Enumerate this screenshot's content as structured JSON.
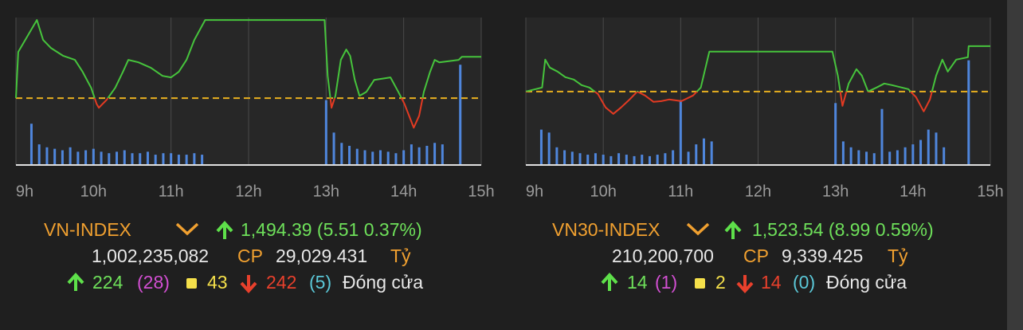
{
  "chart_data": [
    {
      "type": "line",
      "title": "VN-INDEX",
      "quote": "1,494.39 (5.51 0.37%)",
      "volume": "1,002,235,082",
      "volume_unit": "CP",
      "turnover": "29,029.431",
      "turnover_unit": "Tỷ",
      "advances": 224,
      "ceilings": "(28)",
      "unchanged": 43,
      "declines": 242,
      "floors": "(5)",
      "status": "Đóng cửa",
      "x": [
        9.0,
        9.03,
        9.27,
        9.35,
        9.45,
        9.61,
        9.76,
        9.86,
        9.97,
        10.04,
        10.07,
        10.17,
        10.28,
        10.38,
        10.45,
        10.58,
        10.74,
        10.89,
        11.0,
        11.1,
        11.2,
        11.3,
        11.44,
        12.98,
        13.02,
        13.07,
        13.12,
        13.19,
        13.26,
        13.31,
        13.37,
        13.43,
        13.52,
        13.62,
        13.83,
        13.93,
        14.01,
        14.13,
        14.2,
        14.26,
        14.34,
        14.4,
        14.46,
        14.71,
        14.75,
        15.0
      ],
      "values": [
        1488.88,
        1495.03,
        1499.27,
        1496.62,
        1495.56,
        1494.5,
        1493.97,
        1492.38,
        1490.26,
        1488.14,
        1487.61,
        1488.67,
        1490.26,
        1492.38,
        1493.97,
        1493.65,
        1492.91,
        1491.85,
        1491.64,
        1492.38,
        1493.97,
        1496.62,
        1499.27,
        1499.27,
        1491.85,
        1487.61,
        1489.2,
        1493.97,
        1495.35,
        1494.5,
        1491.32,
        1489.2,
        1489.73,
        1491.32,
        1491.64,
        1489.73,
        1488.14,
        1484.96,
        1486.55,
        1489.73,
        1492.38,
        1493.97,
        1493.65,
        1493.97,
        1494.39,
        1494.39
      ],
      "color": "#46c43c",
      "down_color": "#e33a22",
      "reference": 1488.88,
      "reference_color": "#e8b020",
      "ylim": [
        1480,
        1499.6
      ],
      "xlim": [
        9,
        15
      ],
      "xticks": [
        {
          "value": 9,
          "label": "9h"
        },
        {
          "value": 10,
          "label": "10h"
        },
        {
          "value": 11,
          "label": "11h"
        },
        {
          "value": 12,
          "label": "12h"
        },
        {
          "value": 13,
          "label": "13h"
        },
        {
          "value": 14,
          "label": "14h"
        },
        {
          "value": 15,
          "label": "15h"
        }
      ],
      "bars_x": [
        9.2,
        9.3,
        9.4,
        9.5,
        9.6,
        9.7,
        9.8,
        9.9,
        10.0,
        10.1,
        10.2,
        10.3,
        10.4,
        10.5,
        10.6,
        10.7,
        10.8,
        10.9,
        11.0,
        11.1,
        11.2,
        11.3,
        11.4,
        13.0,
        13.1,
        13.2,
        13.3,
        13.4,
        13.5,
        13.6,
        13.7,
        13.8,
        13.9,
        14.0,
        14.1,
        14.2,
        14.3,
        14.4,
        14.5,
        14.73
      ],
      "bars": [
        28,
        14,
        12,
        11,
        10,
        12,
        9,
        10,
        11,
        9,
        8,
        9,
        10,
        8,
        8,
        9,
        7,
        8,
        8,
        7,
        7,
        8,
        7,
        44,
        22,
        15,
        13,
        11,
        10,
        9,
        10,
        9,
        8,
        10,
        14,
        12,
        13,
        15,
        14,
        68
      ],
      "bar_color": "#4f86dc",
      "y2lim": [
        0,
        100
      ]
    },
    {
      "type": "line",
      "title": "VN30-INDEX",
      "quote": "1,523.54 (8.99 0.59%)",
      "volume": "210,200,700",
      "volume_unit": "CP",
      "turnover": "9,339.425",
      "turnover_unit": "Tỷ",
      "advances": 14,
      "ceilings": "(1)",
      "unchanged": 2,
      "declines": 14,
      "floors": "(0)",
      "status": "Đóng cửa",
      "x": [
        9.0,
        9.21,
        9.25,
        9.31,
        9.41,
        9.51,
        9.62,
        9.72,
        9.82,
        9.93,
        10.03,
        10.13,
        10.23,
        10.34,
        10.44,
        10.54,
        10.65,
        10.75,
        10.85,
        11.01,
        11.16,
        11.26,
        11.37,
        12.96,
        13.03,
        13.09,
        13.17,
        13.27,
        13.34,
        13.42,
        13.53,
        13.63,
        13.73,
        13.94,
        14.04,
        14.14,
        14.22,
        14.3,
        14.38,
        14.45,
        14.56,
        14.71,
        14.72,
        15.0
      ],
      "values": [
        1514.55,
        1515.34,
        1520.87,
        1519.29,
        1518.5,
        1517.39,
        1516.92,
        1515.81,
        1515.34,
        1514.08,
        1511.39,
        1510.13,
        1511.39,
        1512.97,
        1514.55,
        1513.76,
        1512.5,
        1512.65,
        1512.97,
        1512.65,
        1513.76,
        1515.34,
        1522.45,
        1522.45,
        1517.71,
        1511.71,
        1516.13,
        1518.97,
        1517.71,
        1514.55,
        1515.34,
        1516.13,
        1515.81,
        1515.02,
        1513.44,
        1510.6,
        1512.97,
        1517.71,
        1520.87,
        1518.5,
        1520.87,
        1521.34,
        1523.54,
        1523.54
      ],
      "color": "#46c43c",
      "down_color": "#e33a22",
      "reference": 1514.55,
      "reference_color": "#e8b020",
      "ylim": [
        1500,
        1529.2
      ],
      "xlim": [
        9,
        15
      ],
      "xticks": [
        {
          "value": 9,
          "label": "9h"
        },
        {
          "value": 10,
          "label": "10h"
        },
        {
          "value": 11,
          "label": "11h"
        },
        {
          "value": 12,
          "label": "12h"
        },
        {
          "value": 13,
          "label": "13h"
        },
        {
          "value": 14,
          "label": "14h"
        },
        {
          "value": 15,
          "label": "15h"
        }
      ],
      "bars_x": [
        9.2,
        9.3,
        9.4,
        9.5,
        9.6,
        9.7,
        9.8,
        9.9,
        10.0,
        10.1,
        10.2,
        10.3,
        10.4,
        10.5,
        10.6,
        10.7,
        10.8,
        10.9,
        11.0,
        11.1,
        11.2,
        11.3,
        11.4,
        13.0,
        13.1,
        13.2,
        13.3,
        13.4,
        13.5,
        13.6,
        13.7,
        13.8,
        13.9,
        14.0,
        14.1,
        14.2,
        14.3,
        14.4,
        14.72
      ],
      "bars": [
        24,
        22,
        12,
        10,
        9,
        8,
        7,
        8,
        7,
        6,
        8,
        7,
        6,
        7,
        6,
        7,
        8,
        10,
        44,
        9,
        14,
        18,
        16,
        42,
        16,
        12,
        10,
        9,
        8,
        38,
        9,
        10,
        12,
        14,
        17,
        24,
        22,
        12,
        71
      ],
      "bar_color": "#4f86dc",
      "y2lim": [
        0,
        100
      ]
    }
  ]
}
